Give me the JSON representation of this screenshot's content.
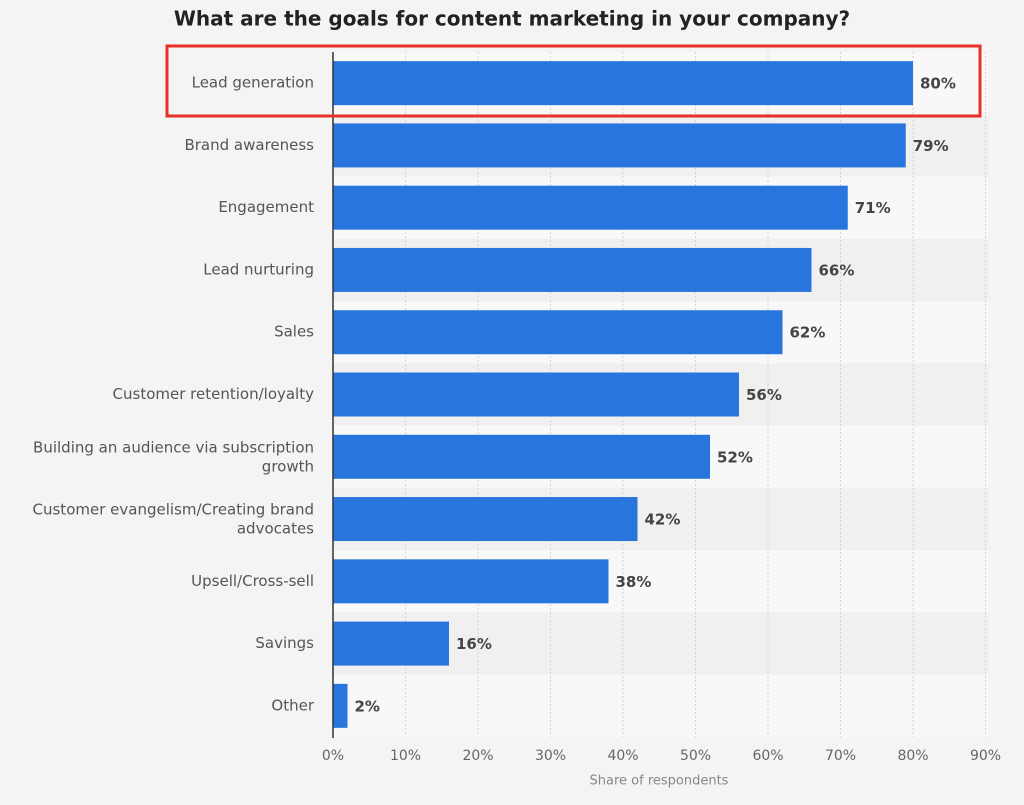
{
  "chart_data": {
    "type": "bar",
    "orientation": "horizontal",
    "title": "What are the goals for content marketing in your company?",
    "x_label": "Share of respondents",
    "categories": [
      "Lead generation",
      "Brand awareness",
      "Engagement",
      "Lead nurturing",
      "Sales",
      "Customer retention/loyalty",
      "Building an audience via subscription growth",
      "Customer evangelism/Creating brand advocates",
      "Upsell/Cross-sell",
      "Savings",
      "Other"
    ],
    "values": [
      80,
      79,
      71,
      66,
      62,
      56,
      52,
      42,
      38,
      16,
      2
    ],
    "value_labels": [
      "80%",
      "79%",
      "71%",
      "66%",
      "62%",
      "56%",
      "52%",
      "42%",
      "38%",
      "16%",
      "2%"
    ],
    "color": "#2876dd",
    "xlim": [
      0,
      90
    ],
    "xticks": [
      {
        "value": 0,
        "label": "0%"
      },
      {
        "value": 10,
        "label": "10%"
      },
      {
        "value": 20,
        "label": "20%"
      },
      {
        "value": 30,
        "label": "30%"
      },
      {
        "value": 40,
        "label": "40%"
      },
      {
        "value": 50,
        "label": "50%"
      },
      {
        "value": 60,
        "label": "60%"
      },
      {
        "value": 70,
        "label": "70%"
      },
      {
        "value": 80,
        "label": "80%"
      },
      {
        "value": 90,
        "label": "90%"
      }
    ],
    "grid": true
  }
}
